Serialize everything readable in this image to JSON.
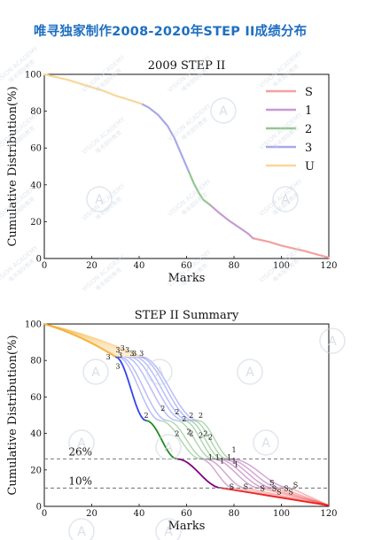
{
  "page": {
    "title": "唯寻独家制作2008-2020年STEP II成绩分布"
  },
  "watermark": {
    "line1": "VISION ACADEMY",
    "line2": "唯寻国际教育",
    "color": "#c9d3de"
  },
  "chart_data": [
    {
      "type": "line",
      "title": "2009 STEP II",
      "xlabel": "Marks",
      "ylabel": "Cumulative Distribution(%)",
      "xlim": [
        0,
        120
      ],
      "ylim": [
        0,
        100
      ],
      "xticks": [
        0,
        20,
        40,
        60,
        80,
        100,
        120
      ],
      "yticks": [
        0,
        20,
        40,
        60,
        80,
        100
      ],
      "grid": false,
      "legend_position": "top-right",
      "series": [
        {
          "name": "S",
          "color": "#f4a0a0",
          "x": [
            88,
            95,
            100,
            105,
            110,
            115,
            120
          ],
          "y": [
            11,
            9,
            7,
            5.5,
            4,
            2.2,
            0.5
          ]
        },
        {
          "name": "1",
          "color": "#c79ad0",
          "x": [
            70,
            74,
            78,
            82,
            86,
            88
          ],
          "y": [
            29,
            24.5,
            20.5,
            17,
            13.5,
            11
          ]
        },
        {
          "name": "2",
          "color": "#92c88e",
          "x": [
            61,
            63,
            65,
            67,
            70
          ],
          "y": [
            47,
            41,
            36,
            32,
            29
          ]
        },
        {
          "name": "3",
          "color": "#a8a8ec",
          "x": [
            41,
            44,
            48,
            52,
            55,
            58,
            61
          ],
          "y": [
            84,
            82,
            78,
            72,
            65,
            56,
            47
          ]
        },
        {
          "name": "U",
          "color": "#f8d79a",
          "x": [
            0,
            5,
            10,
            15,
            20,
            25,
            30,
            35,
            41
          ],
          "y": [
            100,
            98.5,
            97,
            95,
            93,
            91,
            88.5,
            86.5,
            84
          ]
        }
      ]
    },
    {
      "type": "line",
      "title": "STEP II Summary",
      "xlabel": "Marks",
      "ylabel": "Cumulative Distribution(%)",
      "xlim": [
        0,
        120
      ],
      "ylim": [
        0,
        100
      ],
      "xticks": [
        0,
        20,
        40,
        60,
        80,
        100,
        120
      ],
      "yticks": [
        0,
        20,
        40,
        60,
        80,
        100
      ],
      "grid": false,
      "reference_lines": [
        {
          "label": "26%",
          "y": 26,
          "label_x": 10
        },
        {
          "label": "10%",
          "y": 10,
          "label_x": 10
        }
      ],
      "segment_colors": {
        "U": "#f5b23a",
        "3": "#3344ee",
        "2": "#228b22",
        "1": "#800080",
        "S": "#ee2222"
      },
      "series": [
        {
          "name": "",
          "grade_boundaries": {
            "3": 30,
            "2": 43,
            "1": 56,
            "S": 75
          }
        },
        {
          "name": "",
          "grade_boundaries": {
            "3": 31,
            "2": 49,
            "1": 66,
            "S": 80
          }
        },
        {
          "name": "",
          "grade_boundaries": {
            "3": 32,
            "2": 52,
            "1": 68,
            "S": 85
          }
        },
        {
          "name": "",
          "grade_boundaries": {
            "3": 34,
            "2": 56,
            "1": 71,
            "S": 91
          }
        },
        {
          "name": "",
          "grade_boundaries": {
            "3": 36,
            "2": 59,
            "1": 73,
            "S": 94
          }
        },
        {
          "name": "",
          "grade_boundaries": {
            "3": 38,
            "2": 61,
            "1": 75,
            "S": 97
          }
        },
        {
          "name": "",
          "grade_boundaries": {
            "3": 40,
            "2": 63,
            "1": 77,
            "S": 100
          }
        },
        {
          "name": "",
          "grade_boundaries": {
            "3": 41,
            "2": 65,
            "1": 79,
            "S": 104
          }
        }
      ],
      "markers": [
        {
          "label": "3",
          "x": 31,
          "y": 86
        },
        {
          "label": "3",
          "x": 32,
          "y": 83
        },
        {
          "label": "3",
          "x": 33,
          "y": 87
        },
        {
          "label": "3",
          "x": 35,
          "y": 86
        },
        {
          "label": "3",
          "x": 37,
          "y": 84
        },
        {
          "label": "3",
          "x": 38,
          "y": 84
        },
        {
          "label": "3",
          "x": 41,
          "y": 84
        },
        {
          "label": "3",
          "x": 27,
          "y": 82
        },
        {
          "label": "3",
          "x": 31,
          "y": 77
        },
        {
          "label": "2",
          "x": 43,
          "y": 50
        },
        {
          "label": "2",
          "x": 50,
          "y": 54
        },
        {
          "label": "2",
          "x": 56,
          "y": 52
        },
        {
          "label": "2",
          "x": 59,
          "y": 48
        },
        {
          "label": "2",
          "x": 62,
          "y": 50
        },
        {
          "label": "2",
          "x": 66,
          "y": 50
        },
        {
          "label": "2",
          "x": 61,
          "y": 41
        },
        {
          "label": "2",
          "x": 56,
          "y": 40
        },
        {
          "label": "2",
          "x": 62,
          "y": 40
        },
        {
          "label": "2",
          "x": 66,
          "y": 39
        },
        {
          "label": "2",
          "x": 68,
          "y": 40
        },
        {
          "label": "2",
          "x": 70,
          "y": 38
        },
        {
          "label": "1",
          "x": 70,
          "y": 27
        },
        {
          "label": "1",
          "x": 73,
          "y": 27
        },
        {
          "label": "1",
          "x": 75,
          "y": 25
        },
        {
          "label": "1",
          "x": 78,
          "y": 27
        },
        {
          "label": "1",
          "x": 80,
          "y": 31
        },
        {
          "label": "1",
          "x": 80,
          "y": 25
        },
        {
          "label": "1",
          "x": 81,
          "y": 23
        },
        {
          "label": "S",
          "x": 79,
          "y": 11
        },
        {
          "label": "S",
          "x": 85,
          "y": 11
        },
        {
          "label": "S",
          "x": 92,
          "y": 10
        },
        {
          "label": "S",
          "x": 96,
          "y": 13
        },
        {
          "label": "S",
          "x": 97,
          "y": 10
        },
        {
          "label": "S",
          "x": 99,
          "y": 8
        },
        {
          "label": "S",
          "x": 102,
          "y": 10
        },
        {
          "label": "S",
          "x": 104,
          "y": 8
        },
        {
          "label": "S",
          "x": 106,
          "y": 12
        }
      ]
    }
  ]
}
